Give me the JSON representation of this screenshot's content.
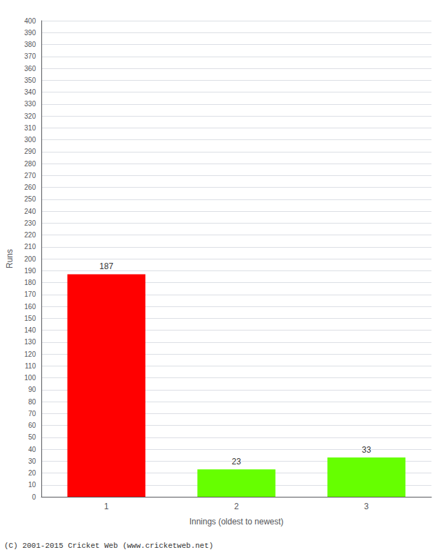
{
  "chart_data": {
    "type": "bar",
    "categories": [
      "1",
      "2",
      "3"
    ],
    "values": [
      187,
      23,
      33
    ],
    "colors": [
      "#ff0000",
      "#66ff00",
      "#66ff00"
    ],
    "xlabel": "Innings (oldest to newest)",
    "ylabel": "Runs",
    "ylim": [
      0,
      400
    ],
    "yticks": [
      0,
      10,
      20,
      30,
      40,
      50,
      60,
      70,
      80,
      90,
      100,
      110,
      120,
      130,
      140,
      150,
      160,
      170,
      180,
      190,
      200,
      210,
      220,
      230,
      240,
      250,
      260,
      270,
      280,
      290,
      300,
      310,
      320,
      330,
      340,
      350,
      360,
      370,
      380,
      390,
      400
    ],
    "grid": true,
    "data_labels": true,
    "annotations": [
      "(C) 2001-2015 Cricket Web (www.cricketweb.net)"
    ]
  }
}
